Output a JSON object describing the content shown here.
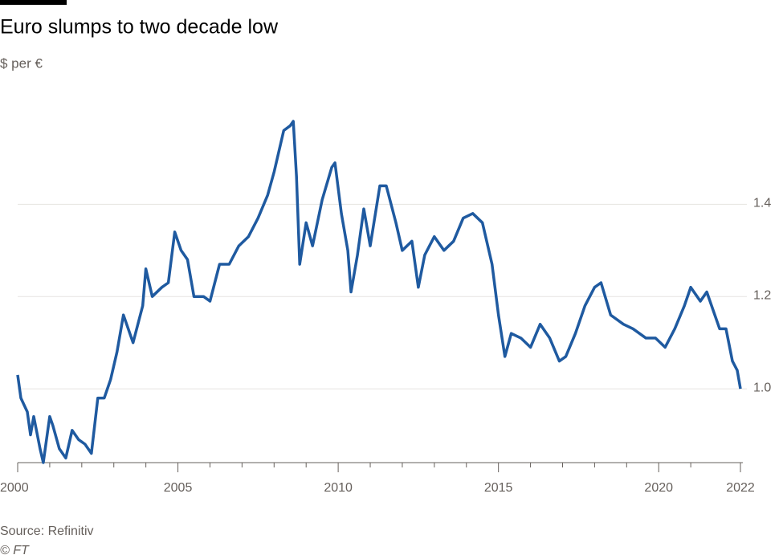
{
  "chart_data": {
    "type": "line",
    "title": "Euro slumps to two decade low",
    "subtitle": "$ per €",
    "source": "Source: Refinitiv",
    "credit": "© FT",
    "x": [
      2000.0,
      2000.1,
      2000.3,
      2000.4,
      2000.5,
      2000.7,
      2000.8,
      2001.0,
      2001.1,
      2001.3,
      2001.5,
      2001.7,
      2001.9,
      2002.1,
      2002.3,
      2002.5,
      2002.7,
      2002.9,
      2003.1,
      2003.3,
      2003.6,
      2003.9,
      2004.0,
      2004.2,
      2004.5,
      2004.7,
      2004.9,
      2005.1,
      2005.3,
      2005.5,
      2005.8,
      2006.0,
      2006.3,
      2006.6,
      2006.9,
      2007.2,
      2007.5,
      2007.8,
      2008.0,
      2008.3,
      2008.5,
      2008.6,
      2008.7,
      2008.8,
      2009.0,
      2009.2,
      2009.5,
      2009.8,
      2009.9,
      2010.1,
      2010.3,
      2010.4,
      2010.6,
      2010.8,
      2011.0,
      2011.3,
      2011.5,
      2011.8,
      2012.0,
      2012.3,
      2012.5,
      2012.7,
      2013.0,
      2013.3,
      2013.6,
      2013.9,
      2014.2,
      2014.5,
      2014.8,
      2015.0,
      2015.2,
      2015.4,
      2015.7,
      2016.0,
      2016.3,
      2016.6,
      2016.9,
      2017.1,
      2017.4,
      2017.7,
      2018.0,
      2018.2,
      2018.5,
      2018.9,
      2019.2,
      2019.6,
      2019.9,
      2020.2,
      2020.5,
      2020.8,
      2021.0,
      2021.3,
      2021.5,
      2021.7,
      2021.9,
      2022.1,
      2022.3,
      2022.45,
      2022.55
    ],
    "series": [
      {
        "name": "$ per €",
        "color": "#1f5aa0",
        "values": [
          1.03,
          0.98,
          0.95,
          0.9,
          0.94,
          0.87,
          0.84,
          0.94,
          0.92,
          0.87,
          0.85,
          0.91,
          0.89,
          0.88,
          0.86,
          0.98,
          0.98,
          1.02,
          1.08,
          1.16,
          1.1,
          1.18,
          1.26,
          1.2,
          1.22,
          1.23,
          1.34,
          1.3,
          1.28,
          1.2,
          1.2,
          1.19,
          1.27,
          1.27,
          1.31,
          1.33,
          1.37,
          1.42,
          1.47,
          1.56,
          1.57,
          1.58,
          1.46,
          1.27,
          1.36,
          1.31,
          1.41,
          1.48,
          1.49,
          1.38,
          1.3,
          1.21,
          1.29,
          1.39,
          1.31,
          1.44,
          1.44,
          1.36,
          1.3,
          1.32,
          1.22,
          1.29,
          1.33,
          1.3,
          1.32,
          1.37,
          1.38,
          1.36,
          1.27,
          1.16,
          1.07,
          1.12,
          1.11,
          1.09,
          1.14,
          1.11,
          1.06,
          1.07,
          1.12,
          1.18,
          1.22,
          1.23,
          1.16,
          1.14,
          1.13,
          1.11,
          1.11,
          1.09,
          1.13,
          1.18,
          1.22,
          1.19,
          1.21,
          1.17,
          1.13,
          1.13,
          1.06,
          1.04,
          1.0
        ]
      }
    ],
    "xlim": [
      2000,
      2022.55
    ],
    "xticks": [
      2000,
      2005,
      2010,
      2015,
      2020,
      {
        "value": 2022.55,
        "label": "2022"
      }
    ],
    "xminorticks": [
      2001,
      2002,
      2003,
      2004,
      2006,
      2007,
      2008,
      2009,
      2011,
      2012,
      2013,
      2014,
      2016,
      2017,
      2018,
      2019,
      2021
    ],
    "ylim": [
      0.84,
      1.62
    ],
    "yticks": [
      {
        "value": 1,
        "label": "1.0"
      },
      1.2,
      1.4
    ],
    "grid": true
  }
}
